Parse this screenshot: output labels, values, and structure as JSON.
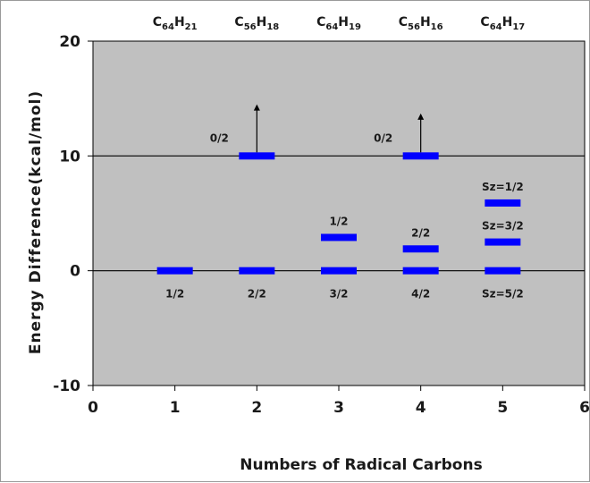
{
  "chart_data": {
    "type": "scatter",
    "title": "",
    "xlabel": "Numbers of Radical Carbons",
    "ylabel": "Energy Difference(kcal/mol)",
    "xlim": [
      0,
      6
    ],
    "ylim": [
      -10,
      20
    ],
    "x_ticks": [
      "0",
      "1",
      "2",
      "3",
      "4",
      "5",
      "6"
    ],
    "y_ticks": [
      "-10",
      "0",
      "10",
      "20"
    ],
    "grid": "horizontal lines at y = 0 and y = 10",
    "plot_background": "#c0c0c0",
    "level_color": "#0000ff",
    "molecules": [
      {
        "x": 1,
        "base": "C",
        "sub1": "64",
        "mid": "H",
        "sub2": "21"
      },
      {
        "x": 2,
        "base": "C",
        "sub1": "56",
        "mid": "H",
        "sub2": "18"
      },
      {
        "x": 3,
        "base": "C",
        "sub1": "64",
        "mid": "H",
        "sub2": "19"
      },
      {
        "x": 4,
        "base": "C",
        "sub1": "56",
        "mid": "H",
        "sub2": "16"
      },
      {
        "x": 5,
        "base": "C",
        "sub1": "64",
        "mid": "H",
        "sub2": "17"
      }
    ],
    "levels": [
      {
        "x": 1,
        "y": 0,
        "label": "1/2",
        "label_pos": "below"
      },
      {
        "x": 2,
        "y": 0,
        "label": "2/2",
        "label_pos": "below"
      },
      {
        "x": 2,
        "y": 10,
        "label": "0/2",
        "label_pos": "upper-left",
        "arrow": true,
        "arrow_to": 14.5
      },
      {
        "x": 3,
        "y": 0,
        "label": "3/2",
        "label_pos": "below"
      },
      {
        "x": 3,
        "y": 2.9,
        "label": "1/2",
        "label_pos": "above"
      },
      {
        "x": 4,
        "y": 0,
        "label": "4/2",
        "label_pos": "below"
      },
      {
        "x": 4,
        "y": 1.9,
        "label": "2/2",
        "label_pos": "above"
      },
      {
        "x": 4,
        "y": 10,
        "label": "0/2",
        "label_pos": "upper-left",
        "arrow": true,
        "arrow_to": 13.7
      },
      {
        "x": 5,
        "y": 0,
        "label": "Sz=5/2",
        "label_pos": "below"
      },
      {
        "x": 5,
        "y": 2.5,
        "label": "Sz=3/2",
        "label_pos": "above"
      },
      {
        "x": 5,
        "y": 5.9,
        "label": "Sz=1/2",
        "label_pos": "above"
      }
    ]
  }
}
